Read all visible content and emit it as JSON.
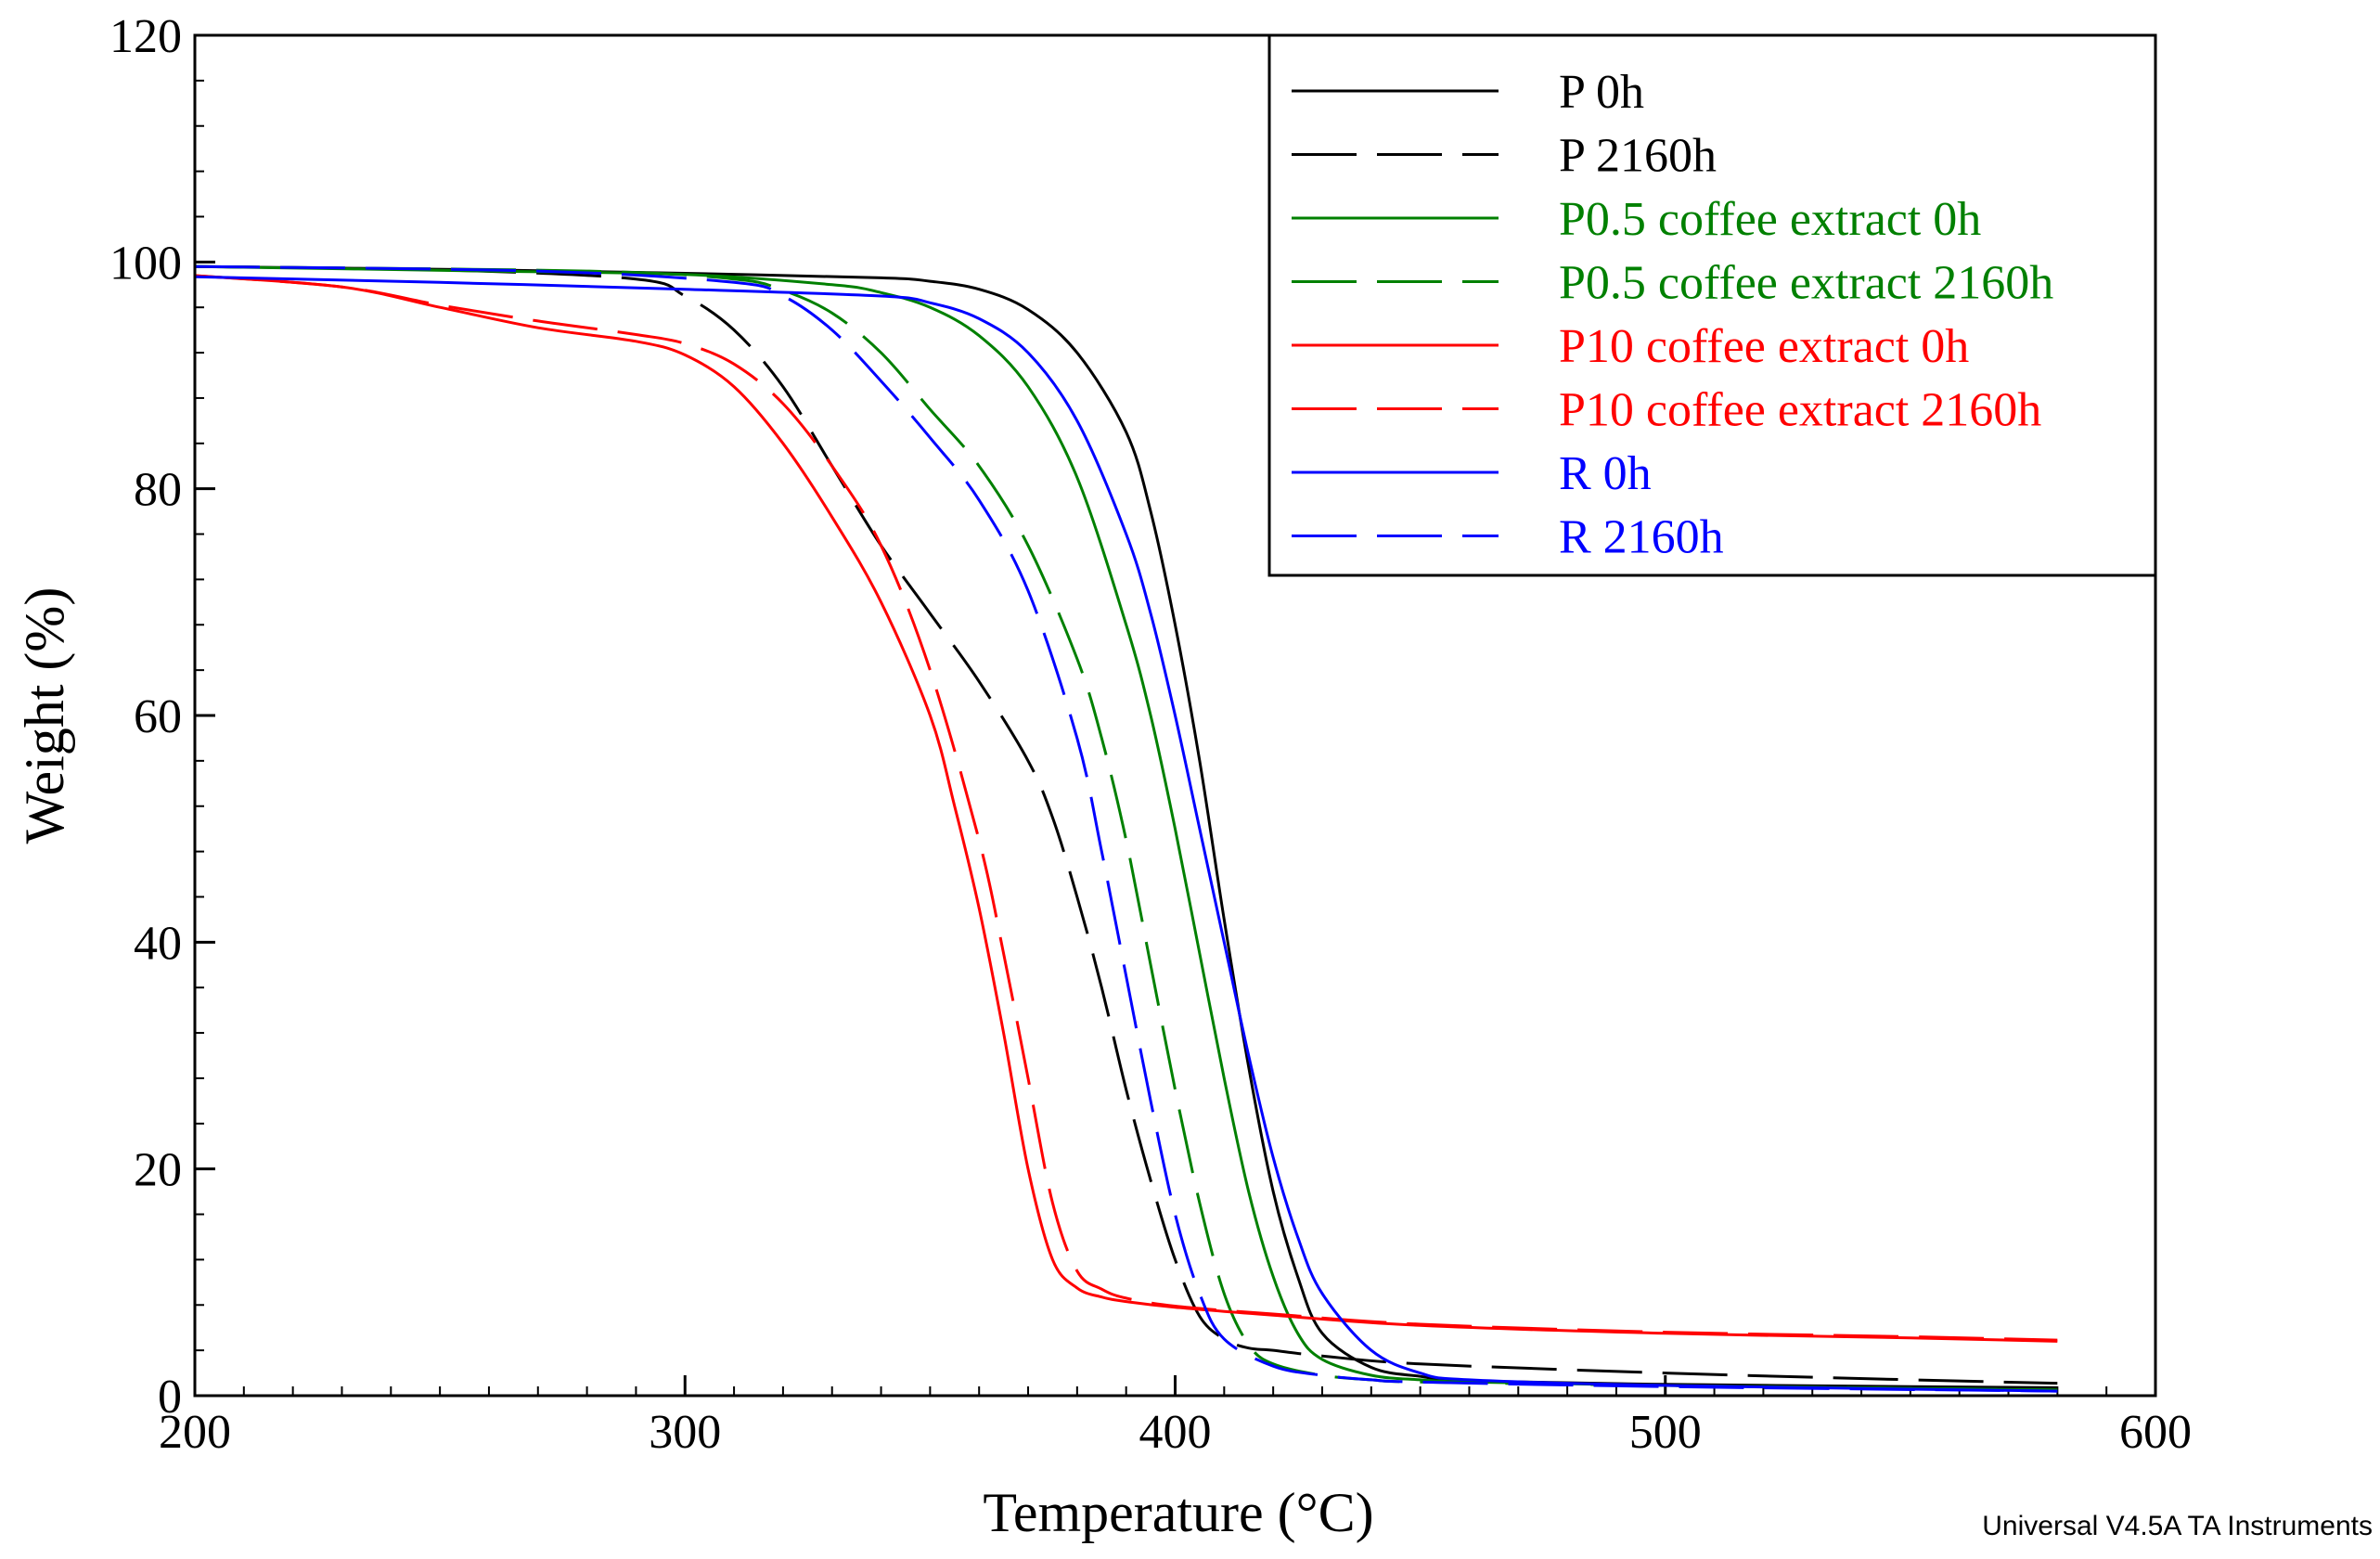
{
  "chart_data": {
    "type": "line",
    "title": "",
    "xlabel": "Temperature (°C)",
    "ylabel": "Weight (%)",
    "xlim": [
      200,
      600
    ],
    "ylim": [
      0,
      120
    ],
    "x_ticks": [
      200,
      300,
      400,
      500,
      600
    ],
    "y_ticks": [
      0,
      20,
      40,
      60,
      80,
      100,
      120
    ],
    "grid": false,
    "legend_position": "top-right",
    "series": [
      {
        "name": "P 0h",
        "color": "#000000",
        "dash": "solid",
        "x": [
          200,
          260,
          300,
          340,
          350,
          360,
          370,
          380,
          390,
          395,
          400,
          405,
          410,
          415,
          420,
          425,
          430,
          440,
          450,
          460,
          500,
          550,
          580
        ],
        "y": [
          99.6,
          99.3,
          99.0,
          98.6,
          98.3,
          97.6,
          95.8,
          92.0,
          85.0,
          78.0,
          68.0,
          56.0,
          42.0,
          29.0,
          18.0,
          10.5,
          5.5,
          2.5,
          1.7,
          1.3,
          1.0,
          0.8,
          0.7
        ]
      },
      {
        "name": "P 2160h",
        "color": "#000000",
        "dash": "dashed",
        "x": [
          200,
          250,
          290,
          300,
          310,
          320,
          330,
          340,
          350,
          360,
          370,
          375,
          380,
          385,
          390,
          395,
          400,
          405,
          410,
          415,
          420,
          430,
          450,
          500,
          550,
          580
        ],
        "y": [
          99.6,
          99.3,
          98.5,
          97.0,
          94.0,
          89.0,
          82.0,
          75.0,
          69.0,
          63.0,
          56.0,
          51.0,
          44.0,
          36.0,
          27.0,
          19.0,
          12.0,
          7.0,
          5.0,
          4.2,
          4.0,
          3.5,
          2.8,
          2.0,
          1.4,
          1.1
        ]
      },
      {
        "name": "P0.5 coffee extract 0h",
        "color": "#008000",
        "dash": "solid",
        "x": [
          200,
          260,
          300,
          330,
          340,
          350,
          360,
          370,
          380,
          390,
          395,
          400,
          405,
          410,
          415,
          420,
          425,
          430,
          440,
          450,
          460,
          500,
          580
        ],
        "y": [
          99.6,
          99.2,
          98.9,
          98.0,
          97.3,
          96.0,
          93.5,
          89.0,
          81.0,
          68.0,
          60.0,
          50.0,
          39.0,
          28.0,
          18.0,
          10.5,
          5.5,
          3.2,
          1.8,
          1.4,
          1.2,
          0.9,
          0.5
        ]
      },
      {
        "name": "P0.5 coffee extract 2160h",
        "color": "#008000",
        "dash": "dashed",
        "x": [
          200,
          280,
          310,
          320,
          330,
          340,
          350,
          360,
          370,
          380,
          385,
          390,
          395,
          400,
          405,
          410,
          415,
          420,
          430,
          440,
          450,
          500,
          580
        ],
        "y": [
          99.6,
          99.2,
          98.5,
          97.5,
          95.5,
          92.0,
          87.0,
          82.0,
          75.0,
          65.0,
          58.0,
          49.0,
          38.0,
          27.0,
          17.0,
          9.0,
          4.5,
          2.8,
          1.8,
          1.4,
          1.2,
          0.9,
          0.5
        ]
      },
      {
        "name": "P10 coffee extract 0h",
        "color": "#ff0000",
        "dash": "solid",
        "x": [
          200,
          230,
          250,
          270,
          290,
          300,
          310,
          320,
          330,
          340,
          350,
          355,
          360,
          365,
          370,
          375,
          380,
          385,
          390,
          400,
          420,
          450,
          500,
          550,
          580
        ],
        "y": [
          98.8,
          97.8,
          96.0,
          94.2,
          93.0,
          91.8,
          89.0,
          84.0,
          77.5,
          70.0,
          60.0,
          52.0,
          43.0,
          32.0,
          20.0,
          12.0,
          9.5,
          8.7,
          8.3,
          7.8,
          7.1,
          6.2,
          5.5,
          5.1,
          4.8
        ]
      },
      {
        "name": "P10 coffee extract 2160h",
        "color": "#ff0000",
        "dash": "dashed",
        "x": [
          200,
          230,
          250,
          270,
          290,
          300,
          310,
          320,
          330,
          340,
          350,
          360,
          365,
          370,
          375,
          380,
          385,
          390,
          400,
          420,
          450,
          500,
          550,
          580
        ],
        "y": [
          98.8,
          97.8,
          96.2,
          94.8,
          93.6,
          92.8,
          91.0,
          87.5,
          82.0,
          75.0,
          64.0,
          49.0,
          39.0,
          28.0,
          17.0,
          11.0,
          9.4,
          8.6,
          7.9,
          7.2,
          6.3,
          5.6,
          5.2,
          4.9
        ]
      },
      {
        "name": "R 0h",
        "color": "#0000ff",
        "dash": "solid",
        "x": [
          200,
          250,
          300,
          340,
          350,
          360,
          370,
          380,
          390,
          395,
          400,
          405,
          410,
          415,
          420,
          425,
          430,
          440,
          450,
          460,
          500,
          580
        ],
        "y": [
          98.7,
          98.2,
          97.6,
          97.0,
          96.4,
          95.0,
          92.0,
          86.0,
          76.0,
          69.0,
          60.0,
          50.0,
          40.0,
          30.0,
          21.0,
          14.0,
          9.0,
          4.0,
          2.0,
          1.4,
          0.9,
          0.4
        ]
      },
      {
        "name": "R 2160h",
        "color": "#0000ff",
        "dash": "dashed",
        "x": [
          200,
          270,
          310,
          320,
          330,
          340,
          350,
          360,
          370,
          380,
          385,
          390,
          395,
          400,
          405,
          410,
          420,
          430,
          440,
          450,
          500,
          580
        ],
        "y": [
          99.6,
          99.2,
          98.2,
          97.0,
          94.0,
          89.5,
          84.5,
          79.0,
          71.0,
          58.0,
          48.0,
          37.0,
          26.0,
          16.0,
          9.0,
          5.0,
          2.6,
          1.8,
          1.4,
          1.2,
          0.8,
          0.4
        ]
      }
    ]
  },
  "footer": "Universal V4.5A TA Instruments"
}
